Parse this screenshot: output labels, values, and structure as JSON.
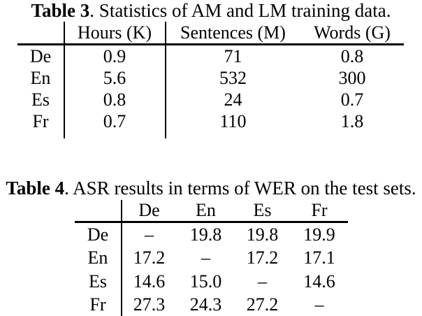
{
  "page": {
    "background_color": "#ffffff",
    "text_color": "#000000"
  },
  "table3": {
    "caption_label": "Table 3",
    "caption_text": ". Statistics of AM and LM training data.",
    "corner": "",
    "col_headers": [
      "Hours (K)",
      "Sentences (M)",
      "Words (G)"
    ],
    "rows": [
      {
        "label": "De",
        "values": [
          "0.9",
          "71",
          "0.8"
        ]
      },
      {
        "label": "En",
        "values": [
          "5.6",
          "532",
          "300"
        ]
      },
      {
        "label": "Es",
        "values": [
          "0.8",
          "24",
          "0.7"
        ]
      },
      {
        "label": "Fr",
        "values": [
          "0.7",
          "110",
          "1.8"
        ]
      }
    ]
  },
  "table4": {
    "caption_label": "Table 4",
    "caption_text": ". ASR results in terms of WER on the test sets.",
    "corner": "",
    "col_headers": [
      "De",
      "En",
      "Es",
      "Fr"
    ],
    "rows": [
      {
        "label": "De",
        "values": [
          "–",
          "19.8",
          "19.8",
          "19.9"
        ]
      },
      {
        "label": "En",
        "values": [
          "17.2",
          "–",
          "17.2",
          "17.1"
        ]
      },
      {
        "label": "Es",
        "values": [
          "14.6",
          "15.0",
          "–",
          "14.6"
        ]
      },
      {
        "label": "Fr",
        "values": [
          "27.3",
          "24.3",
          "27.2",
          "–"
        ]
      }
    ]
  }
}
